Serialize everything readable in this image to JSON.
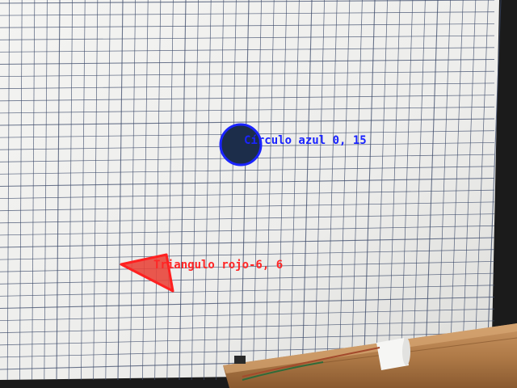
{
  "detections": {
    "circle": {
      "label": "Círculo azul 0, 15",
      "outline_color": "#1a24ff",
      "fill_color": "#1c2d4a"
    },
    "triangle": {
      "label": "Triangulo rojo-6, 6",
      "outline_color": "#ff2020",
      "fill_color": "#e8463c"
    }
  },
  "colors": {
    "paper": "#f1f1ef",
    "grid_line": "#3c4a6a",
    "background": "#1b1b1b",
    "wood": "#b07b48"
  }
}
